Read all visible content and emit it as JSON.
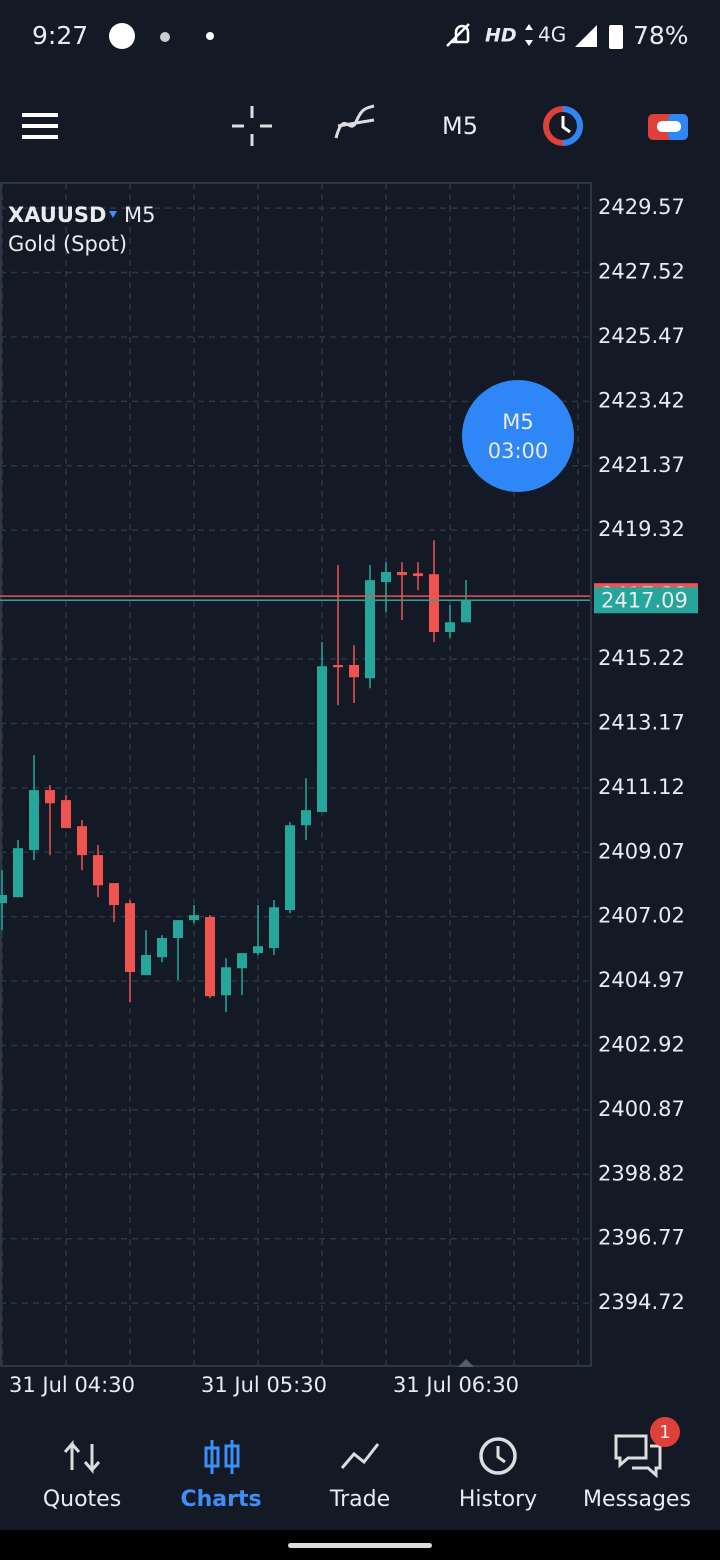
{
  "status_bar": {
    "time": "9:27",
    "network": "HD",
    "signal": "4G",
    "battery": "78%"
  },
  "toolbar": {
    "timeframe": "M5"
  },
  "chart_data": {
    "type": "candlestick",
    "symbol": "XAUUSD",
    "timeframe": "M5",
    "description": "Gold (Spot)",
    "categories": [
      null,
      null,
      null,
      null,
      "31 Jul 04:30",
      null,
      null,
      null,
      null,
      null,
      null,
      null,
      null,
      null,
      null,
      null,
      "31 Jul 05:30",
      null,
      null,
      null,
      null,
      null,
      null,
      null,
      null,
      null,
      null,
      null,
      "31 Jul 06:30",
      null
    ],
    "open": [
      2407.45,
      2407.64,
      2409.14,
      2411.05,
      2410.73,
      2409.9,
      2408.98,
      2408.09,
      2407.45,
      2405.16,
      2405.73,
      2406.34,
      2406.91,
      2407.01,
      2404.52,
      2405.38,
      2405.86,
      2406.02,
      2407.23,
      2409.93,
      2410.35,
      2415.03,
      2415.03,
      2414.61,
      2417.67,
      2417.99,
      2417.95,
      2417.92,
      2416.08,
      2416.39
    ],
    "high": [
      2408.5,
      2409.46,
      2412.16,
      2411.21,
      2410.89,
      2410.09,
      2409.3,
      2408.09,
      2407.55,
      2406.59,
      2406.43,
      2406.91,
      2407.39,
      2407.07,
      2405.7,
      2405.86,
      2407.39,
      2407.55,
      2410.03,
      2411.43,
      2415.76,
      2418.21,
      2415.66,
      2418.21,
      2418.3,
      2418.3,
      2418.3,
      2419.0,
      2416.94,
      2417.73
    ],
    "low": [
      2406.59,
      2407.64,
      2408.82,
      2408.98,
      2409.84,
      2408.5,
      2407.64,
      2406.85,
      2404.3,
      2405.16,
      2405.57,
      2405.0,
      2406.81,
      2404.43,
      2403.98,
      2404.52,
      2405.8,
      2405.8,
      2407.13,
      2409.46,
      2410.35,
      2413.75,
      2413.82,
      2414.29,
      2416.71,
      2416.46,
      2417.41,
      2415.76,
      2415.89,
      2416.39
    ],
    "close": [
      2407.71,
      2409.2,
      2411.05,
      2410.63,
      2409.84,
      2408.98,
      2408.02,
      2407.39,
      2405.26,
      2405.8,
      2406.34,
      2406.91,
      2407.07,
      2404.49,
      2405.41,
      2405.86,
      2406.08,
      2407.32,
      2409.93,
      2410.41,
      2414.99,
      2414.96,
      2414.64,
      2417.73,
      2417.99,
      2417.89,
      2417.86,
      2416.08,
      2416.39,
      2417.09
    ],
    "up_color": "#26a69a",
    "down_color": "#ef5350",
    "ylim": [
      2392.72,
      2430.37
    ],
    "yticks": [
      2429.57,
      2427.52,
      2425.47,
      2423.42,
      2421.37,
      2419.32,
      2415.22,
      2413.17,
      2411.12,
      2409.07,
      2407.02,
      2404.97,
      2402.92,
      2400.87,
      2398.82,
      2396.77,
      2394.72
    ],
    "grid": true,
    "bid_price": 2417.22,
    "last_price": 2417.09,
    "timer": {
      "timeframe": "M5",
      "countdown": "03:00"
    }
  },
  "nav": {
    "items": [
      {
        "label": "Quotes"
      },
      {
        "label": "Charts"
      },
      {
        "label": "Trade"
      },
      {
        "label": "History"
      },
      {
        "label": "Messages",
        "badge": 1
      }
    ],
    "active": 1
  }
}
